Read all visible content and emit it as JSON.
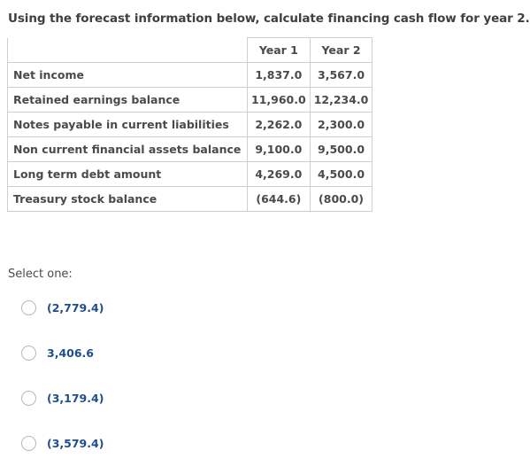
{
  "question": {
    "text": "Using the forecast information below, calculate financing cash flow for year 2."
  },
  "table": {
    "headers": [
      "",
      "Year 1",
      "Year 2"
    ],
    "rows": [
      {
        "label": "Net income",
        "year1": "1,837.0",
        "year2": "3,567.0"
      },
      {
        "label": "Retained earnings balance",
        "year1": "11,960.0",
        "year2": "12,234.0"
      },
      {
        "label": "Notes payable in current liabilities",
        "year1": "2,262.0",
        "year2": "2,300.0"
      },
      {
        "label": "Non current financial assets balance",
        "year1": "9,100.0",
        "year2": "9,500.0"
      },
      {
        "label": "Long term debt amount",
        "year1": "4,269.0",
        "year2": "4,500.0"
      },
      {
        "label": "Treasury stock balance",
        "year1": "(644.6)",
        "year2": "(800.0)"
      }
    ]
  },
  "answer": {
    "prompt": "Select one:",
    "options": [
      {
        "label": "(2,779.4)"
      },
      {
        "label": "3,406.6"
      },
      {
        "label": "(3,179.4)"
      },
      {
        "label": "(3,579.4)"
      }
    ]
  },
  "colors": {
    "option_text": "#1f4e8c",
    "table_border": "#cfcfcf"
  }
}
